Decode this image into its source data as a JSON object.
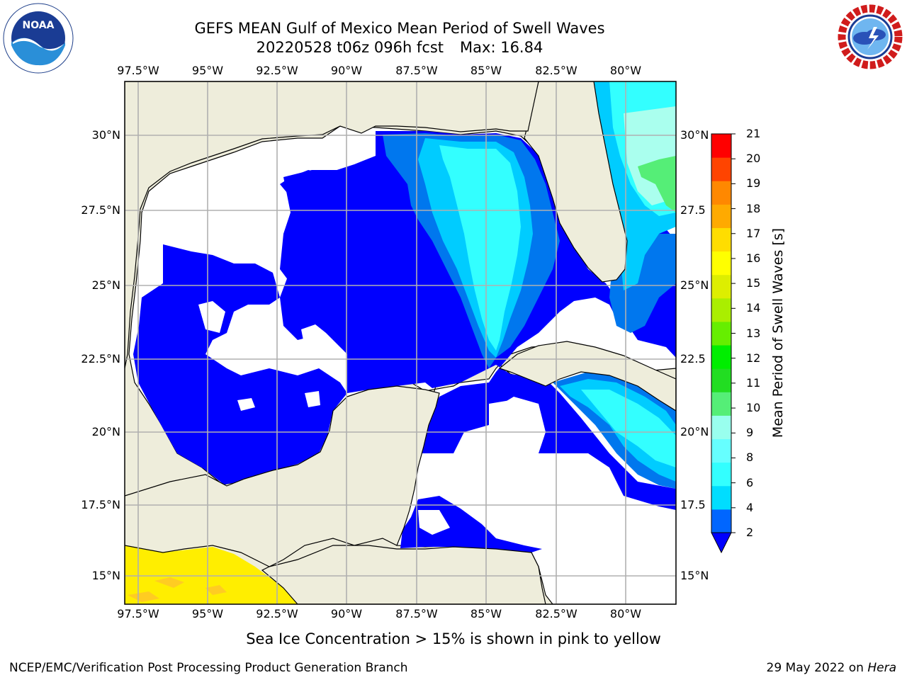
{
  "title": "GEFS MEAN Gulf of Mexico Mean Period of Swell Waves",
  "subtitle_date": "20220528 t06z 096h fcst",
  "subtitle_max": "Max: 16.84",
  "lon_ticks": [
    "97.5°W",
    "95°W",
    "92.5°W",
    "90°W",
    "87.5°W",
    "85°W",
    "82.5°W",
    "80°W"
  ],
  "lat_ticks_left": [
    "30°N",
    "27.5°N",
    "25°N",
    "22.5°N",
    "20°N",
    "17.5°N",
    "15°N"
  ],
  "lat_ticks_right": [
    "30°N",
    "27.5",
    "25°N",
    "22.5",
    "20°N",
    "17.5",
    "15°N"
  ],
  "colorbar": {
    "label": "Mean Period of Swell Waves [s]",
    "levels": [
      "2",
      "4",
      "6",
      "8",
      "9",
      "10",
      "11",
      "12",
      "13",
      "14",
      "15",
      "16",
      "17",
      "18",
      "19",
      "20",
      "21"
    ],
    "colors": [
      "#0066ff",
      "#00ddff",
      "#33ffff",
      "#66ffff",
      "#99ffee",
      "#55ee77",
      "#22dd22",
      "#00ee00",
      "#66ee00",
      "#aaee00",
      "#ddee00",
      "#ffff00",
      "#ffdd00",
      "#ffaa00",
      "#ff8800",
      "#ff4400",
      "#ff0000"
    ],
    "under_color": "#0000ff"
  },
  "legend_note": "Sea Ice Concentration > 15% is shown in pink to yellow",
  "credit": "NCEP/EMC/Verification Post Processing Product Generation Branch",
  "date_stamp": "29 May 2022 on",
  "date_host": "Hera",
  "colors": {
    "land": "#eeeddb",
    "ocean_low": "#0000ff",
    "period_2_4": "#0077ee",
    "period_4_6": "#00ccff",
    "period_6_8": "#33ffff",
    "period_8_9": "#aaffee",
    "grid": "#b0b0b0"
  },
  "logos": {
    "left": "NOAA",
    "right": "NATIONAL WEATHER SERVICE"
  }
}
